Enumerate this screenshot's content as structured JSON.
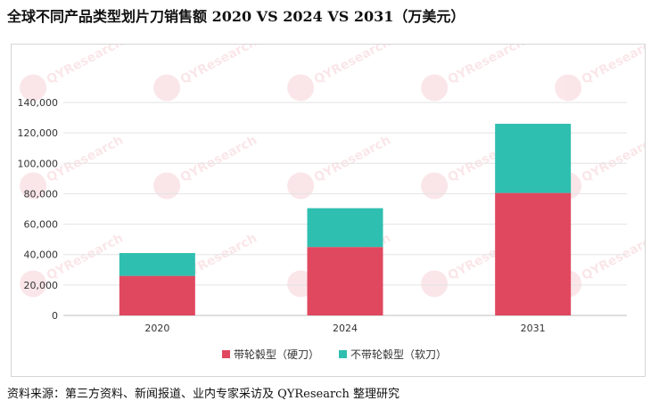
{
  "title": "全球不同产品类型划片刀销售额 2020 VS 2024 VS 2031（万美元）",
  "source": "资料来源：第三方资料、新闻报道、业内专家采访及 QYResearch 整理研究",
  "watermark_text": "QYResearch",
  "chart_data": {
    "type": "bar",
    "stacked": true,
    "title": "全球不同产品类型划片刀销售额 2020 VS 2024 VS 2031（万美元）",
    "xlabel": "",
    "ylabel": "",
    "categories": [
      "2020",
      "2024",
      "2031"
    ],
    "series": [
      {
        "name": "带轮毂型（硬刀）",
        "color": "#e0485f",
        "values": [
          26000,
          45000,
          80500
        ]
      },
      {
        "name": "不带轮毂型（软刀）",
        "color": "#2fbfb0",
        "values": [
          15000,
          25500,
          45500
        ]
      }
    ],
    "ylim": [
      0,
      140000
    ],
    "yticks": [
      "0",
      "20,000",
      "40,000",
      "60,000",
      "80,000",
      "100,000",
      "120,000",
      "140,000"
    ],
    "ytick_values": [
      0,
      20000,
      40000,
      60000,
      80000,
      100000,
      120000,
      140000
    ],
    "grid": true,
    "legend_position": "bottom"
  }
}
